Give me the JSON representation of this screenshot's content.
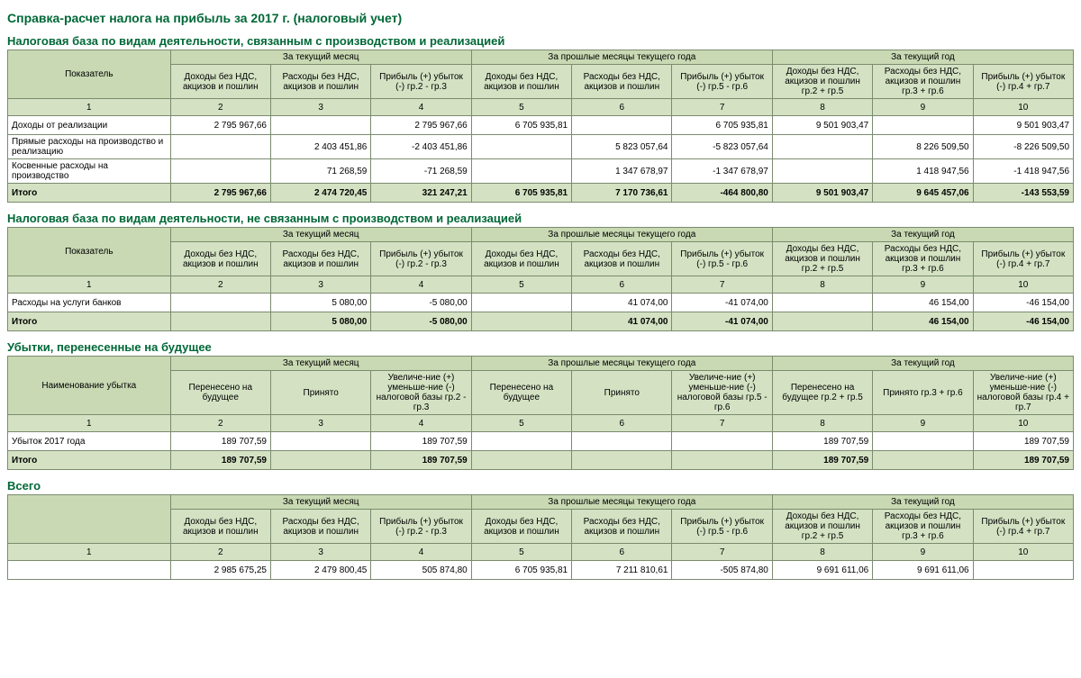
{
  "page_title": "Справка-расчет налога на прибыль за 2017 г. (налоговый учет)",
  "group_headers": {
    "g1": "За текущий месяц",
    "g2": "За прошлые месяцы текущего года",
    "g3": "За текущий год"
  },
  "hdr_income": "Доходы без НДС, акцизов и пошлин",
  "hdr_expense": "Расходы без НДС, акцизов и пошлин",
  "col_indicator": "Показатель",
  "col_loss_name": "Наименование убытка",
  "col_carried": "Перенесено на будущее",
  "col_accepted": "Принято",
  "profit": {
    "m": "Прибыль (+) убыток (-) гр.2 - гр.3",
    "p": "Прибыль (+) убыток (-) гр.5 - гр.6",
    "y": "Прибыль (+) убыток (-) гр.4 + гр.7"
  },
  "yhdr": {
    "inc": "Доходы без НДС, акцизов и пошлин гр.2 + гр.5",
    "exp": "Расходы без НДС, акцизов и пошлин гр.3 + гр.6"
  },
  "losshdr": {
    "m": "Увеличе-ние (+) уменьше-ние (-) налоговой базы гр.2 - гр.3",
    "p": "Увеличе-ние (+) уменьше-ние (-) налоговой базы гр.5 - гр.6",
    "y": "Увеличе-ние (+) уменьше-ние (-) налоговой базы гр.4 + гр.7"
  },
  "losscarr": {
    "y": "Перенесено на будущее гр.2 + гр.5",
    "a": "Принято гр.3 + гр.6"
  },
  "nums": {
    "n1": "1",
    "n2": "2",
    "n3": "3",
    "n4": "4",
    "n5": "5",
    "n6": "6",
    "n7": "7",
    "n8": "8",
    "n9": "9",
    "n10": "10"
  },
  "total_label": "Итого",
  "s1": {
    "title": "Налоговая база по видам деятельности, связанным с производством и реализацией",
    "r1": {
      "l": "Доходы от реализации",
      "c2": "2 795 967,66",
      "c3": "",
      "c4": "2 795 967,66",
      "c5": "6 705 935,81",
      "c6": "",
      "c7": "6 705 935,81",
      "c8": "9 501 903,47",
      "c9": "",
      "c10": "9 501 903,47"
    },
    "r2": {
      "l": "Прямые расходы на производство и реализацию",
      "c2": "",
      "c3": "2 403 451,86",
      "c4": "-2 403 451,86",
      "c5": "",
      "c6": "5 823 057,64",
      "c7": "-5 823 057,64",
      "c8": "",
      "c9": "8 226 509,50",
      "c10": "-8 226 509,50"
    },
    "r3": {
      "l": "Косвенные расходы на производство",
      "c2": "",
      "c3": "71 268,59",
      "c4": "-71 268,59",
      "c5": "",
      "c6": "1 347 678,97",
      "c7": "-1 347 678,97",
      "c8": "",
      "c9": "1 418 947,56",
      "c10": "-1 418 947,56"
    },
    "t": {
      "c2": "2 795 967,66",
      "c3": "2 474 720,45",
      "c4": "321 247,21",
      "c5": "6 705 935,81",
      "c6": "7 170 736,61",
      "c7": "-464 800,80",
      "c8": "9 501 903,47",
      "c9": "9 645 457,06",
      "c10": "-143 553,59"
    }
  },
  "s2": {
    "title": "Налоговая база по видам деятельности, не связанным с производством и реализацией",
    "r1": {
      "l": "Расходы на услуги банков",
      "c2": "",
      "c3": "5 080,00",
      "c4": "-5 080,00",
      "c5": "",
      "c6": "41 074,00",
      "c7": "-41 074,00",
      "c8": "",
      "c9": "46 154,00",
      "c10": "-46 154,00"
    },
    "t": {
      "c2": "",
      "c3": "5 080,00",
      "c4": "-5 080,00",
      "c5": "",
      "c6": "41 074,00",
      "c7": "-41 074,00",
      "c8": "",
      "c9": "46 154,00",
      "c10": "-46 154,00"
    }
  },
  "s3": {
    "title": "Убытки, перенесенные на будущее",
    "r1": {
      "l": "Убыток 2017 года",
      "c2": "189 707,59",
      "c3": "",
      "c4": "189 707,59",
      "c5": "",
      "c6": "",
      "c7": "",
      "c8": "189 707,59",
      "c9": "",
      "c10": "189 707,59"
    },
    "t": {
      "c2": "189 707,59",
      "c3": "",
      "c4": "189 707,59",
      "c5": "",
      "c6": "",
      "c7": "",
      "c8": "189 707,59",
      "c9": "",
      "c10": "189 707,59"
    }
  },
  "s4": {
    "title": "Всего",
    "r1": {
      "l": "",
      "c2": "2 985 675,25",
      "c3": "2 479 800,45",
      "c4": "505 874,80",
      "c5": "6 705 935,81",
      "c6": "7 211 810,61",
      "c7": "-505 874,80",
      "c8": "9 691 611,06",
      "c9": "9 691 611,06",
      "c10": ""
    }
  }
}
